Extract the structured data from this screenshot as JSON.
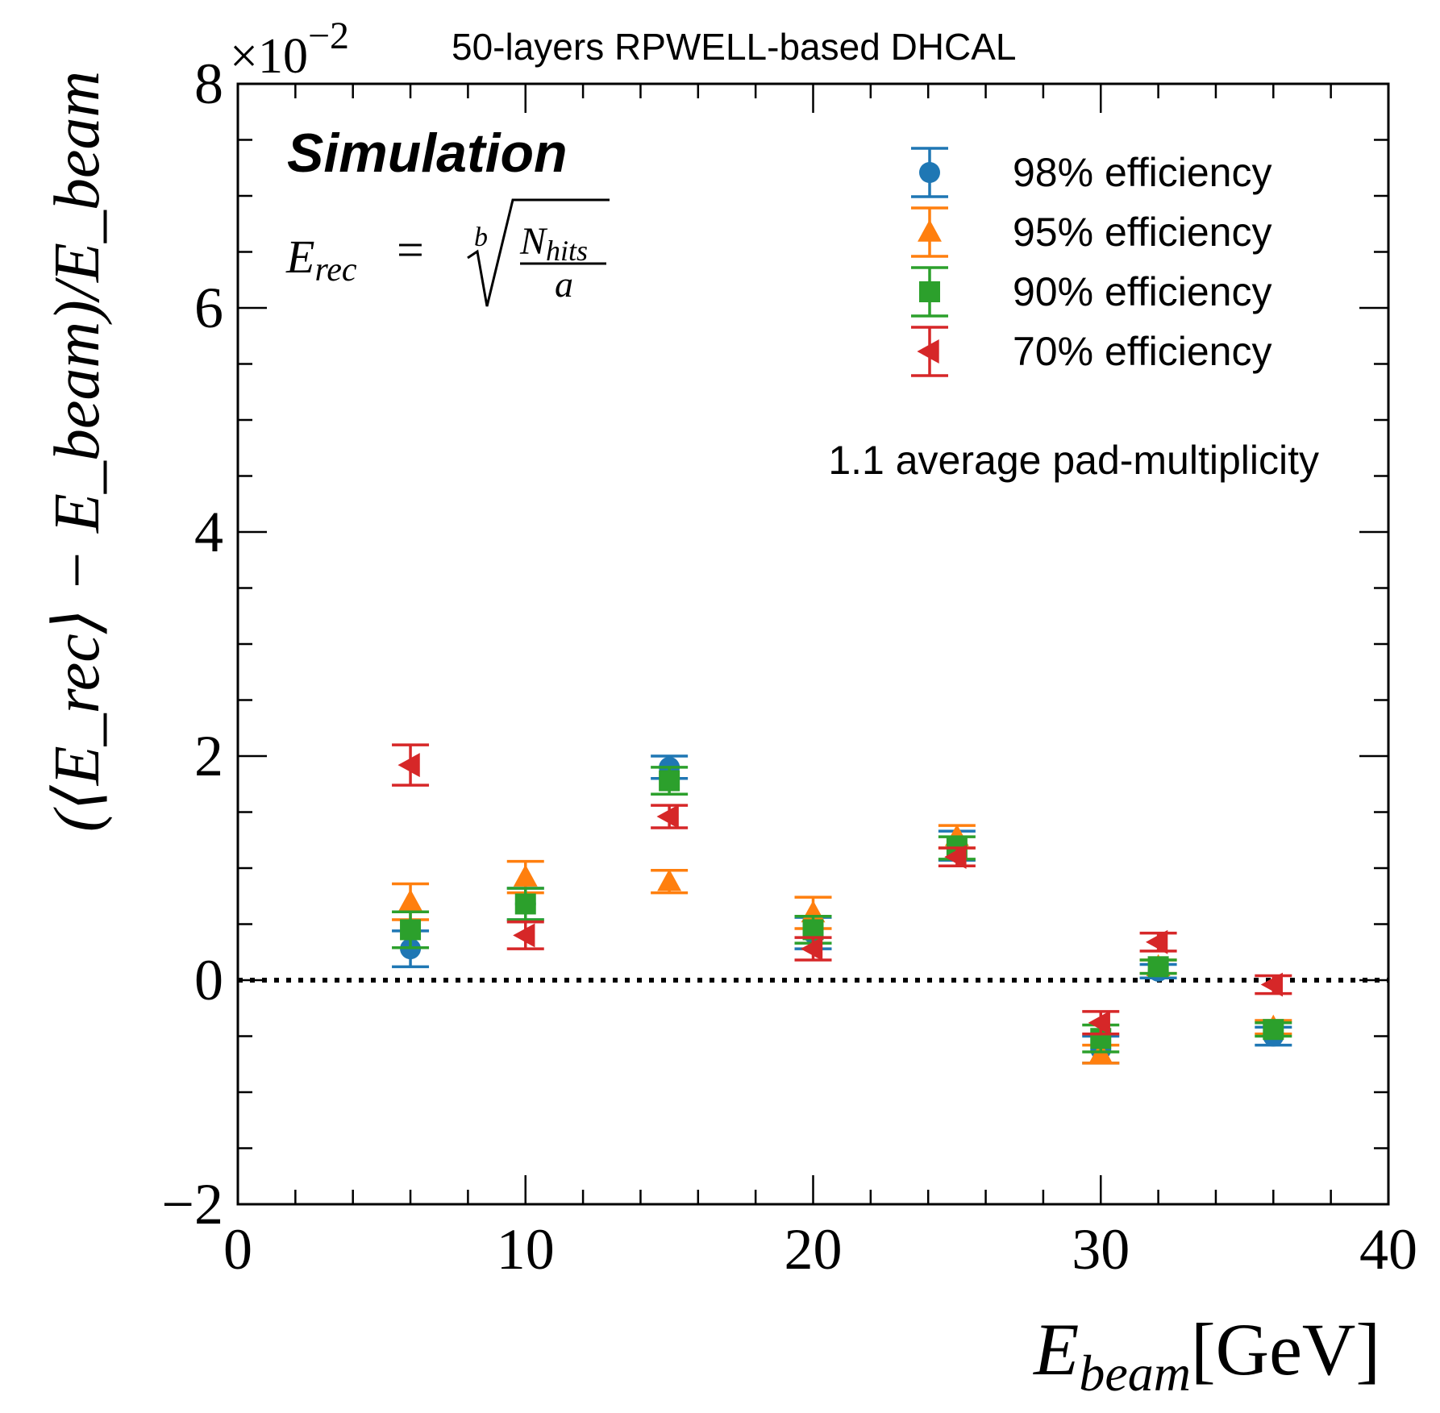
{
  "chart_data": {
    "type": "scatter",
    "title": "50-layers RPWELL-based DHCAL",
    "scale_label": {
      "base": "×10",
      "exponent": "−2"
    },
    "annotations": {
      "simulation": "Simulation",
      "formula": {
        "lhs": "E",
        "lhs_sub": "rec",
        "eq": "=",
        "root_index": "b",
        "numerator": "N",
        "numerator_sub": "hits",
        "denominator": "a"
      },
      "pad_multiplicity": "1.1 average pad-multiplicity"
    },
    "xlabel": {
      "main": "E",
      "sub": "beam",
      "unit": "[GeV]"
    },
    "ylabel": "(⟨E_rec⟩ − E_beam)/E_beam",
    "xlim": [
      0,
      40
    ],
    "ylim": [
      -2,
      8
    ],
    "x_ticks": [
      0,
      10,
      20,
      30,
      40
    ],
    "x_tick_labels": [
      "0",
      "10",
      "20",
      "30",
      "40"
    ],
    "y_ticks": [
      -2,
      0,
      2,
      4,
      6,
      8
    ],
    "y_tick_labels": [
      "−2",
      "0",
      "2",
      "4",
      "6",
      "8"
    ],
    "reference_line": {
      "y": 0,
      "style": "dotted"
    },
    "legend_position": "top-right",
    "series": [
      {
        "name": "98% efficiency",
        "color": "#1f77b4",
        "marker": "circle",
        "x": [
          6,
          10,
          15,
          20,
          25,
          30,
          32,
          36
        ],
        "y": [
          0.28,
          0.68,
          1.9,
          0.42,
          1.2,
          -0.62,
          0.08,
          -0.5
        ],
        "err": [
          0.16,
          0.14,
          0.1,
          0.14,
          0.13,
          0.12,
          0.06,
          0.08
        ]
      },
      {
        "name": "95% efficiency",
        "color": "#ff7f0e",
        "marker": "triangle-up",
        "x": [
          6,
          10,
          15,
          20,
          25,
          30,
          32,
          36
        ],
        "y": [
          0.7,
          0.92,
          0.88,
          0.6,
          1.28,
          -0.66,
          0.12,
          -0.42
        ],
        "err": [
          0.16,
          0.14,
          0.1,
          0.14,
          0.1,
          0.08,
          0.06,
          0.06
        ]
      },
      {
        "name": "90% efficiency",
        "color": "#2ca02c",
        "marker": "square",
        "x": [
          6,
          10,
          15,
          20,
          25,
          30,
          32,
          36
        ],
        "y": [
          0.45,
          0.68,
          1.78,
          0.45,
          1.18,
          -0.52,
          0.12,
          -0.44
        ],
        "err": [
          0.16,
          0.14,
          0.12,
          0.12,
          0.1,
          0.12,
          0.06,
          0.06
        ]
      },
      {
        "name": "70% efficiency",
        "color": "#d62728",
        "marker": "triangle-left",
        "x": [
          6,
          10,
          15,
          20,
          25,
          30,
          32,
          36
        ],
        "y": [
          1.92,
          0.4,
          1.46,
          0.28,
          1.1,
          -0.38,
          0.34,
          -0.04
        ],
        "err": [
          0.18,
          0.12,
          0.1,
          0.1,
          0.08,
          0.1,
          0.08,
          0.08
        ]
      }
    ]
  }
}
